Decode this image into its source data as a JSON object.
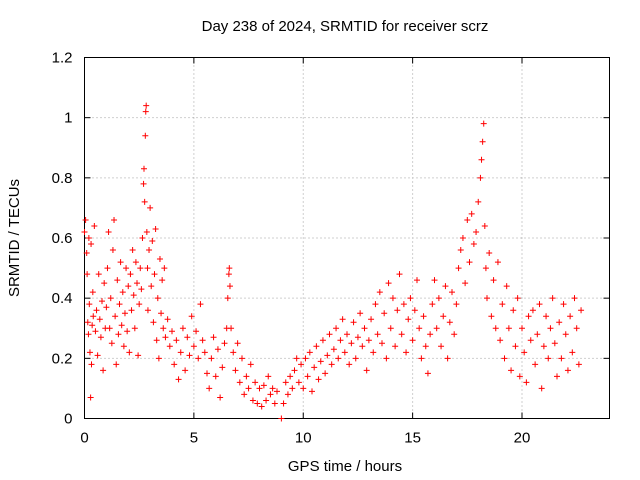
{
  "chart_data": {
    "type": "scatter",
    "title": "Day 238 of 2024, SRMTID for receiver scrz",
    "xlabel": "GPS time / hours",
    "ylabel": "SRMTID / TECUs",
    "xlim": [
      0,
      24
    ],
    "ylim": [
      0,
      1.2
    ],
    "xticks": [
      0,
      5,
      10,
      15,
      20
    ],
    "yticks": [
      0,
      0.2,
      0.4,
      0.6,
      0.8,
      1.0,
      1.2
    ],
    "xtick_labels": [
      "0",
      "5",
      "10",
      "15",
      "20"
    ],
    "ytick_labels": [
      "0",
      "0.2",
      "0.4",
      "0.6",
      "0.8",
      "1",
      "1.2"
    ],
    "grid": true,
    "marker": "+",
    "series": [
      {
        "name": "SRMTID",
        "color": "#ff0000",
        "points": [
          [
            0.0,
            0.62
          ],
          [
            0.05,
            0.66
          ],
          [
            0.1,
            0.55
          ],
          [
            0.12,
            0.48
          ],
          [
            0.15,
            0.32
          ],
          [
            0.18,
            0.28
          ],
          [
            0.2,
            0.6
          ],
          [
            0.22,
            0.38
          ],
          [
            0.25,
            0.22
          ],
          [
            0.28,
            0.07
          ],
          [
            0.3,
            0.58
          ],
          [
            0.32,
            0.18
          ],
          [
            0.35,
            0.31
          ],
          [
            0.38,
            0.42
          ],
          [
            0.4,
            0.34
          ],
          [
            0.45,
            0.64
          ],
          [
            0.5,
            0.29
          ],
          [
            0.55,
            0.36
          ],
          [
            0.6,
            0.21
          ],
          [
            0.65,
            0.48
          ],
          [
            0.7,
            0.33
          ],
          [
            0.75,
            0.27
          ],
          [
            0.8,
            0.39
          ],
          [
            0.85,
            0.16
          ],
          [
            0.9,
            0.45
          ],
          [
            0.95,
            0.3
          ],
          [
            1.0,
            0.37
          ],
          [
            1.05,
            0.5
          ],
          [
            1.1,
            0.62
          ],
          [
            1.15,
            0.3
          ],
          [
            1.2,
            0.4
          ],
          [
            1.25,
            0.25
          ],
          [
            1.3,
            0.56
          ],
          [
            1.35,
            0.66
          ],
          [
            1.4,
            0.34
          ],
          [
            1.45,
            0.18
          ],
          [
            1.5,
            0.46
          ],
          [
            1.55,
            0.28
          ],
          [
            1.6,
            0.38
          ],
          [
            1.65,
            0.52
          ],
          [
            1.7,
            0.31
          ],
          [
            1.75,
            0.42
          ],
          [
            1.8,
            0.24
          ],
          [
            1.85,
            0.35
          ],
          [
            1.9,
            0.5
          ],
          [
            1.95,
            0.29
          ],
          [
            2.0,
            0.44
          ],
          [
            2.05,
            0.22
          ],
          [
            2.1,
            0.48
          ],
          [
            2.15,
            0.36
          ],
          [
            2.2,
            0.56
          ],
          [
            2.25,
            0.41
          ],
          [
            2.3,
            0.3
          ],
          [
            2.35,
            0.52
          ],
          [
            2.4,
            0.45
          ],
          [
            2.45,
            0.21
          ],
          [
            2.5,
            0.38
          ],
          [
            2.55,
            0.5
          ],
          [
            2.6,
            0.43
          ],
          [
            2.65,
            0.6
          ],
          [
            2.7,
            0.78
          ],
          [
            2.72,
            0.83
          ],
          [
            2.75,
            0.72
          ],
          [
            2.78,
            0.94
          ],
          [
            2.8,
            1.02
          ],
          [
            2.82,
            1.04
          ],
          [
            2.85,
            0.62
          ],
          [
            2.88,
            0.5
          ],
          [
            2.9,
            0.36
          ],
          [
            2.95,
            0.56
          ],
          [
            3.0,
            0.7
          ],
          [
            3.05,
            0.44
          ],
          [
            3.1,
            0.59
          ],
          [
            3.15,
            0.32
          ],
          [
            3.2,
            0.48
          ],
          [
            3.25,
            0.63
          ],
          [
            3.3,
            0.26
          ],
          [
            3.35,
            0.4
          ],
          [
            3.4,
            0.2
          ],
          [
            3.45,
            0.53
          ],
          [
            3.5,
            0.35
          ],
          [
            3.55,
            0.46
          ],
          [
            3.6,
            0.3
          ],
          [
            3.65,
            0.5
          ],
          [
            3.7,
            0.27
          ],
          [
            3.8,
            0.33
          ],
          [
            3.9,
            0.24
          ],
          [
            4.0,
            0.29
          ],
          [
            4.1,
            0.18
          ],
          [
            4.2,
            0.26
          ],
          [
            4.3,
            0.13
          ],
          [
            4.4,
            0.22
          ],
          [
            4.5,
            0.3
          ],
          [
            4.6,
            0.16
          ],
          [
            4.7,
            0.27
          ],
          [
            4.8,
            0.21
          ],
          [
            4.9,
            0.34
          ],
          [
            5.0,
            0.24
          ],
          [
            5.1,
            0.29
          ],
          [
            5.2,
            0.2
          ],
          [
            5.3,
            0.38
          ],
          [
            5.4,
            0.26
          ],
          [
            5.5,
            0.22
          ],
          [
            5.6,
            0.15
          ],
          [
            5.7,
            0.1
          ],
          [
            5.8,
            0.2
          ],
          [
            5.9,
            0.27
          ],
          [
            6.0,
            0.14
          ],
          [
            6.1,
            0.23
          ],
          [
            6.2,
            0.07
          ],
          [
            6.3,
            0.17
          ],
          [
            6.4,
            0.25
          ],
          [
            6.5,
            0.3
          ],
          [
            6.55,
            0.4
          ],
          [
            6.6,
            0.48
          ],
          [
            6.62,
            0.5
          ],
          [
            6.65,
            0.44
          ],
          [
            6.7,
            0.3
          ],
          [
            6.8,
            0.22
          ],
          [
            6.9,
            0.16
          ],
          [
            7.0,
            0.25
          ],
          [
            7.1,
            0.12
          ],
          [
            7.2,
            0.2
          ],
          [
            7.3,
            0.08
          ],
          [
            7.4,
            0.14
          ],
          [
            7.5,
            0.1
          ],
          [
            7.6,
            0.18
          ],
          [
            7.7,
            0.06
          ],
          [
            7.8,
            0.12
          ],
          [
            7.9,
            0.05
          ],
          [
            8.0,
            0.1
          ],
          [
            8.1,
            0.04
          ],
          [
            8.2,
            0.11
          ],
          [
            8.3,
            0.06
          ],
          [
            8.4,
            0.14
          ],
          [
            8.5,
            0.08
          ],
          [
            8.6,
            0.1
          ],
          [
            8.7,
            0.05
          ],
          [
            8.8,
            0.09
          ],
          [
            9.0,
            0.0
          ],
          [
            9.1,
            0.05
          ],
          [
            9.2,
            0.12
          ],
          [
            9.3,
            0.08
          ],
          [
            9.4,
            0.14
          ],
          [
            9.5,
            0.1
          ],
          [
            9.6,
            0.16
          ],
          [
            9.7,
            0.2
          ],
          [
            9.8,
            0.12
          ],
          [
            9.9,
            0.18
          ],
          [
            10.0,
            0.1
          ],
          [
            10.1,
            0.2
          ],
          [
            10.2,
            0.14
          ],
          [
            10.3,
            0.22
          ],
          [
            10.4,
            0.09
          ],
          [
            10.5,
            0.17
          ],
          [
            10.6,
            0.24
          ],
          [
            10.7,
            0.13
          ],
          [
            10.8,
            0.19
          ],
          [
            10.9,
            0.26
          ],
          [
            11.0,
            0.15
          ],
          [
            11.1,
            0.21
          ],
          [
            11.2,
            0.28
          ],
          [
            11.3,
            0.18
          ],
          [
            11.4,
            0.23
          ],
          [
            11.5,
            0.3
          ],
          [
            11.6,
            0.2
          ],
          [
            11.7,
            0.26
          ],
          [
            11.8,
            0.33
          ],
          [
            11.9,
            0.22
          ],
          [
            12.0,
            0.28
          ],
          [
            12.1,
            0.18
          ],
          [
            12.2,
            0.25
          ],
          [
            12.3,
            0.32
          ],
          [
            12.4,
            0.2
          ],
          [
            12.5,
            0.27
          ],
          [
            12.6,
            0.35
          ],
          [
            12.7,
            0.24
          ],
          [
            12.8,
            0.3
          ],
          [
            12.9,
            0.16
          ],
          [
            13.0,
            0.26
          ],
          [
            13.1,
            0.33
          ],
          [
            13.2,
            0.22
          ],
          [
            13.3,
            0.38
          ],
          [
            13.4,
            0.28
          ],
          [
            13.5,
            0.42
          ],
          [
            13.6,
            0.25
          ],
          [
            13.7,
            0.35
          ],
          [
            13.8,
            0.2
          ],
          [
            13.9,
            0.45
          ],
          [
            14.0,
            0.3
          ],
          [
            14.1,
            0.4
          ],
          [
            14.2,
            0.24
          ],
          [
            14.3,
            0.36
          ],
          [
            14.4,
            0.48
          ],
          [
            14.5,
            0.28
          ],
          [
            14.6,
            0.38
          ],
          [
            14.7,
            0.22
          ],
          [
            14.8,
            0.33
          ],
          [
            14.9,
            0.4
          ],
          [
            15.0,
            0.26
          ],
          [
            15.1,
            0.36
          ],
          [
            15.2,
            0.46
          ],
          [
            15.3,
            0.3
          ],
          [
            15.4,
            0.2
          ],
          [
            15.5,
            0.34
          ],
          [
            15.6,
            0.24
          ],
          [
            15.7,
            0.15
          ],
          [
            15.8,
            0.28
          ],
          [
            15.9,
            0.38
          ],
          [
            16.0,
            0.46
          ],
          [
            16.1,
            0.3
          ],
          [
            16.2,
            0.4
          ],
          [
            16.3,
            0.24
          ],
          [
            16.4,
            0.34
          ],
          [
            16.5,
            0.44
          ],
          [
            16.6,
            0.2
          ],
          [
            16.7,
            0.32
          ],
          [
            16.8,
            0.42
          ],
          [
            16.9,
            0.28
          ],
          [
            17.0,
            0.38
          ],
          [
            17.1,
            0.5
          ],
          [
            17.2,
            0.56
          ],
          [
            17.3,
            0.6
          ],
          [
            17.4,
            0.45
          ],
          [
            17.5,
            0.66
          ],
          [
            17.6,
            0.52
          ],
          [
            17.7,
            0.68
          ],
          [
            17.8,
            0.58
          ],
          [
            17.9,
            0.62
          ],
          [
            18.0,
            0.72
          ],
          [
            18.1,
            0.8
          ],
          [
            18.15,
            0.86
          ],
          [
            18.2,
            0.92
          ],
          [
            18.25,
            0.98
          ],
          [
            18.3,
            0.64
          ],
          [
            18.35,
            0.5
          ],
          [
            18.4,
            0.4
          ],
          [
            18.5,
            0.55
          ],
          [
            18.6,
            0.34
          ],
          [
            18.7,
            0.46
          ],
          [
            18.8,
            0.3
          ],
          [
            18.9,
            0.52
          ],
          [
            19.0,
            0.26
          ],
          [
            19.1,
            0.38
          ],
          [
            19.2,
            0.2
          ],
          [
            19.3,
            0.44
          ],
          [
            19.4,
            0.3
          ],
          [
            19.5,
            0.16
          ],
          [
            19.6,
            0.36
          ],
          [
            19.7,
            0.24
          ],
          [
            19.8,
            0.4
          ],
          [
            19.9,
            0.14
          ],
          [
            20.0,
            0.3
          ],
          [
            20.1,
            0.22
          ],
          [
            20.2,
            0.12
          ],
          [
            20.3,
            0.34
          ],
          [
            20.4,
            0.26
          ],
          [
            20.5,
            0.36
          ],
          [
            20.6,
            0.18
          ],
          [
            20.7,
            0.28
          ],
          [
            20.8,
            0.38
          ],
          [
            20.9,
            0.1
          ],
          [
            21.0,
            0.24
          ],
          [
            21.1,
            0.34
          ],
          [
            21.2,
            0.2
          ],
          [
            21.3,
            0.3
          ],
          [
            21.4,
            0.4
          ],
          [
            21.5,
            0.25
          ],
          [
            21.6,
            0.14
          ],
          [
            21.7,
            0.32
          ],
          [
            21.8,
            0.2
          ],
          [
            21.9,
            0.38
          ],
          [
            22.0,
            0.28
          ],
          [
            22.1,
            0.16
          ],
          [
            22.2,
            0.34
          ],
          [
            22.3,
            0.22
          ],
          [
            22.4,
            0.4
          ],
          [
            22.5,
            0.3
          ],
          [
            22.6,
            0.18
          ],
          [
            22.7,
            0.36
          ]
        ]
      }
    ]
  }
}
